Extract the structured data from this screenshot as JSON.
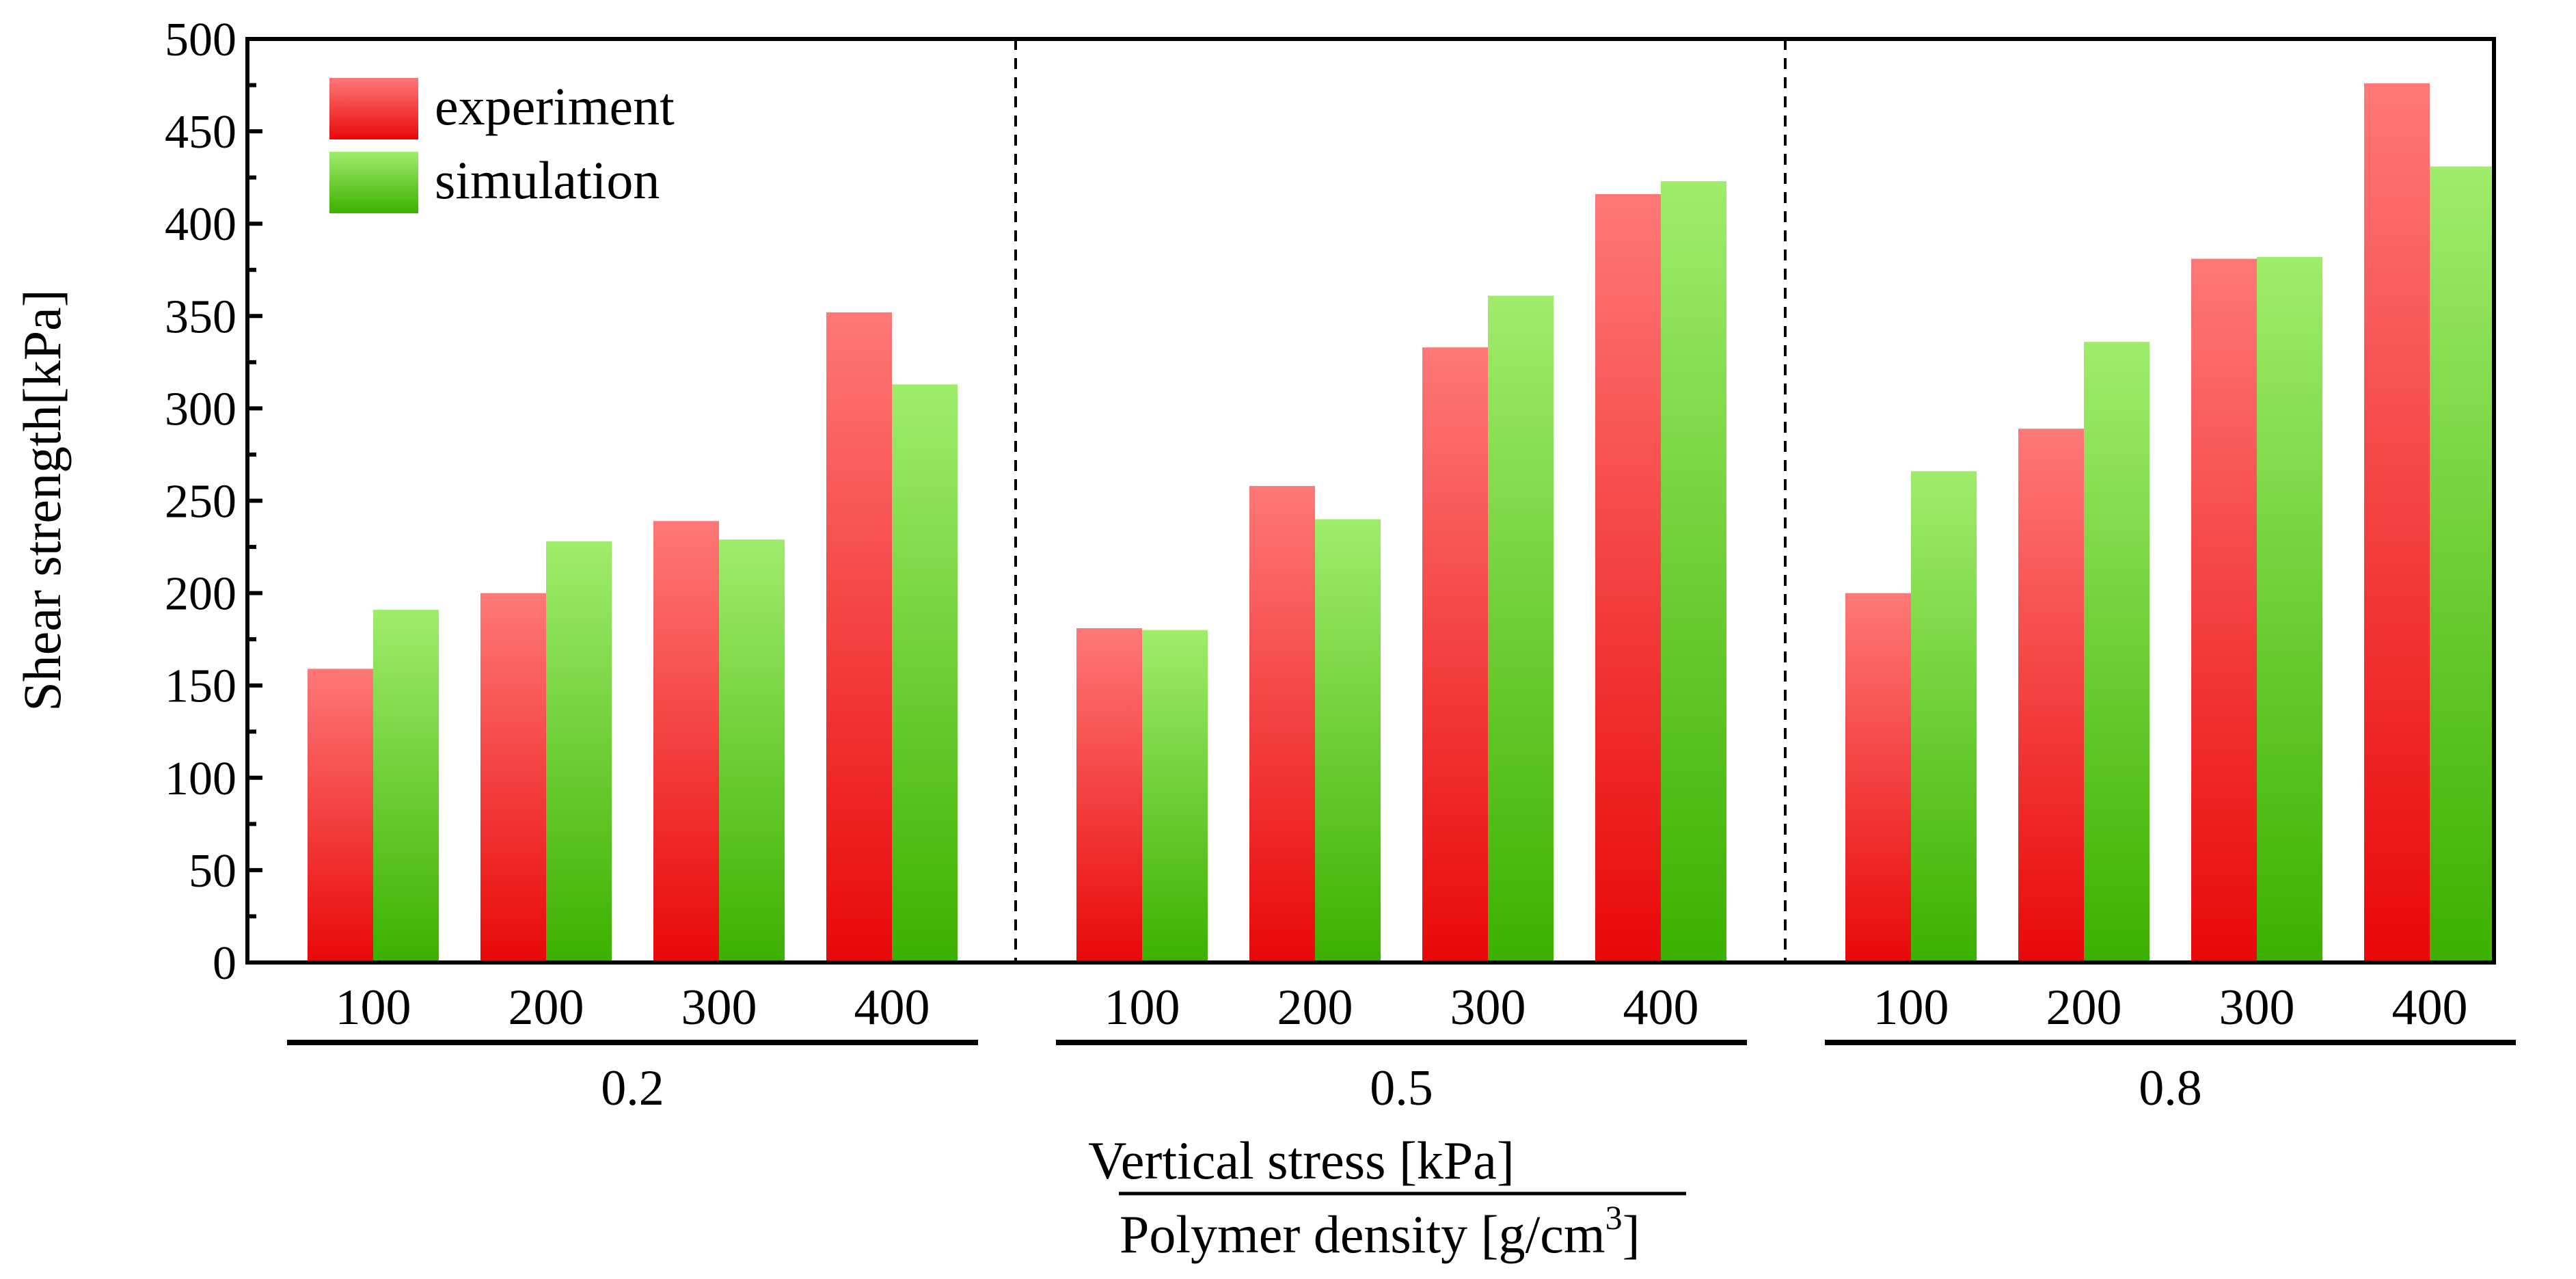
{
  "chart_data": {
    "type": "bar",
    "ylabel": "Shear strength[kPa]",
    "xlabel_top": "Vertical stress [kPa]",
    "xlabel_bottom_main": "Polymer density [g/cm",
    "xlabel_bottom_sup": "3",
    "xlabel_bottom_end": "]",
    "ylim": [
      0,
      500
    ],
    "yticks": [
      "0",
      "50",
      "100",
      "150",
      "200",
      "250",
      "300",
      "350",
      "400",
      "450",
      "500"
    ],
    "groups": [
      {
        "label": "0.2",
        "categories": [
          "100",
          "200",
          "300",
          "400"
        ]
      },
      {
        "label": "0.5",
        "categories": [
          "100",
          "200",
          "300",
          "400"
        ]
      },
      {
        "label": "0.8",
        "categories": [
          "100",
          "200",
          "300",
          "400"
        ]
      }
    ],
    "series": [
      {
        "name": "experiment",
        "values": [
          159,
          200,
          239,
          352,
          181,
          258,
          333,
          416,
          200,
          289,
          381,
          476
        ]
      },
      {
        "name": "simulation",
        "values": [
          191,
          228,
          229,
          313,
          180,
          240,
          361,
          423,
          266,
          336,
          382,
          431
        ]
      }
    ],
    "legend_position": "top-left"
  },
  "colors": {
    "experiment_top": "#ff7878",
    "experiment_bottom": "#e80808",
    "simulation_top": "#a0ec6c",
    "simulation_bottom": "#3cb000"
  }
}
